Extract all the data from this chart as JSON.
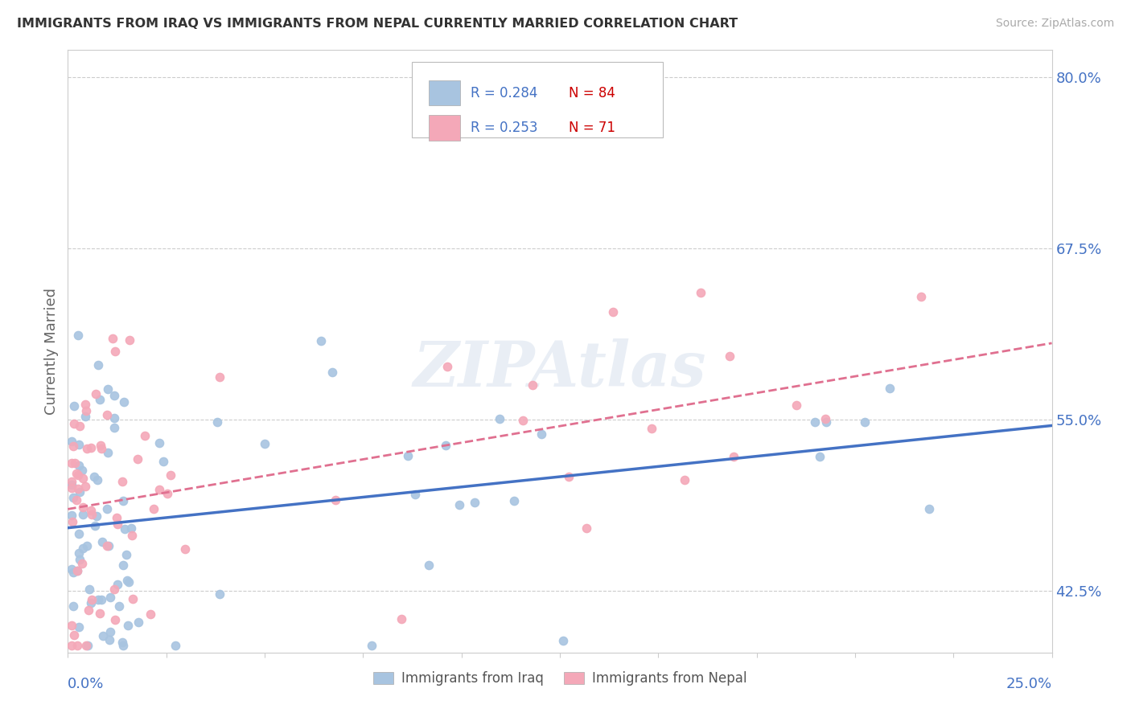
{
  "title": "IMMIGRANTS FROM IRAQ VS IMMIGRANTS FROM NEPAL CURRENTLY MARRIED CORRELATION CHART",
  "source": "Source: ZipAtlas.com",
  "ylabel_label": "Currently Married",
  "r_iraq": 0.284,
  "n_iraq": 84,
  "r_nepal": 0.253,
  "n_nepal": 71,
  "iraq_scatter_color": "#a8c4e0",
  "nepal_scatter_color": "#f4a8b8",
  "iraq_line_color": "#4472c4",
  "nepal_line_color": "#e07090",
  "watermark": "ZIPAtlas",
  "xmin": 0.0,
  "xmax": 0.25,
  "ymin": 0.38,
  "ymax": 0.82,
  "background": "#ffffff",
  "grid_color": "#cccccc",
  "legend_r_color": "#4472c4",
  "legend_n_color": "#cc0000",
  "ytick_labels": [
    "42.5%",
    "55.0%",
    "67.5%",
    "80.0%"
  ],
  "ytick_vals": [
    0.425,
    0.55,
    0.675,
    0.8
  ],
  "iraq_intercept": 0.472,
  "iraq_slope": 0.48,
  "nepal_intercept": 0.468,
  "nepal_slope": 0.62
}
